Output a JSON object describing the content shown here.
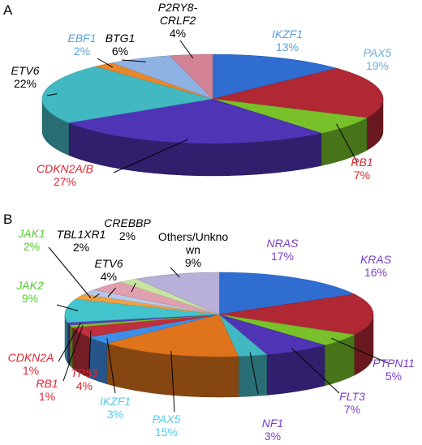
{
  "chart_data": [
    {
      "type": "pie",
      "panel": "A",
      "slices": [
        {
          "label": "IKZF1",
          "value": 13,
          "pct": "13%",
          "color": "#2f6dd0",
          "label_color": "#5aa0dc"
        },
        {
          "label": "PAX5",
          "value": 19,
          "pct": "19%",
          "color": "#b02834",
          "label_color": "#6aaee0"
        },
        {
          "label": "RB1",
          "value": 7,
          "pct": "7%",
          "color": "#78c12a",
          "label_color": "#e0242f"
        },
        {
          "label": "CDKN2A/B",
          "value": 27,
          "pct": "27%",
          "color": "#4f34b6",
          "label_color": "#e0242f"
        },
        {
          "label": "ETV6",
          "value": 22,
          "pct": "22%",
          "color": "#42b8c2",
          "label_color": "#000000"
        },
        {
          "label": "EBF1",
          "value": 2,
          "pct": "2%",
          "color": "#e8882c",
          "label_color": "#5aa0dc"
        },
        {
          "label": "BTG1",
          "value": 6,
          "pct": "6%",
          "color": "#8fb2e4",
          "label_color": "#000000"
        },
        {
          "label": "P2RY8-CRLF2",
          "value": 4,
          "pct": "4%",
          "color": "#d48396",
          "label_color": "#000000",
          "label_lines": [
            "P2RY8-",
            "CRLF2"
          ]
        }
      ]
    },
    {
      "type": "pie",
      "panel": "B",
      "slices": [
        {
          "label": "NRAS",
          "value": 17,
          "pct": "17%",
          "color": "#2f6dd0",
          "label_color": "#7a3ec8"
        },
        {
          "label": "KRAS",
          "value": 16,
          "pct": "16%",
          "color": "#b02834",
          "label_color": "#7a3ec8"
        },
        {
          "label": "PTPN11",
          "value": 5,
          "pct": "5%",
          "color": "#78c12a",
          "label_color": "#7a3ec8"
        },
        {
          "label": "FLT3",
          "value": 7,
          "pct": "7%",
          "color": "#4f34b6",
          "label_color": "#7a3ec8"
        },
        {
          "label": "NF1",
          "value": 3,
          "pct": "3%",
          "color": "#42b8c2",
          "label_color": "#7a3ec8"
        },
        {
          "label": "PAX5",
          "value": 15,
          "pct": "15%",
          "color": "#e0741c",
          "label_color": "#5ac8e8"
        },
        {
          "label": "IKZF1",
          "value": 3,
          "pct": "3%",
          "color": "#3d8ee8",
          "label_color": "#5ac8e8"
        },
        {
          "label": "TP53",
          "value": 4,
          "pct": "4%",
          "color": "#c0303c",
          "label_color": "#e0242f"
        },
        {
          "label": "RB1",
          "value": 1,
          "pct": "1%",
          "color": "#7ac32e",
          "label_color": "#e0242f"
        },
        {
          "label": "CDKN2A",
          "value": 1,
          "pct": "1%",
          "color": "#5a3cc0",
          "label_color": "#e0242f"
        },
        {
          "label": "JAK2",
          "value": 9,
          "pct": "9%",
          "color": "#42c4cc",
          "label_color": "#55cc33"
        },
        {
          "label": "JAK1",
          "value": 2,
          "pct": "2%",
          "color": "#f0a040",
          "label_color": "#55cc33"
        },
        {
          "label": "TBL1XR1",
          "value": 2,
          "pct": "2%",
          "color": "#b8c8e8",
          "label_color": "#000000"
        },
        {
          "label": "ETV6",
          "value": 4,
          "pct": "4%",
          "color": "#e0a0b0",
          "label_color": "#000000"
        },
        {
          "label": "CREBBP",
          "value": 2,
          "pct": "2%",
          "color": "#c8e4a0",
          "label_color": "#000000"
        },
        {
          "label": "Others/Unknown",
          "value": 9,
          "pct": "9%",
          "color": "#b8b0d8",
          "label_color": "#000000",
          "label_lines": [
            "Others/Unkno",
            "wn"
          ],
          "upright": true
        }
      ]
    }
  ]
}
